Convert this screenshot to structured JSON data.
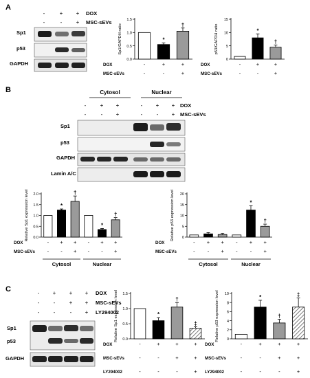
{
  "panels": [
    {
      "letter": "A"
    },
    {
      "letter": "B"
    },
    {
      "letter": "C"
    }
  ],
  "row_labels": {
    "dox": "DOX",
    "msc": "MSC-sEVs",
    "ly": "LY294002"
  },
  "signs": {
    "plus": "+",
    "minus": "-"
  },
  "marks": {
    "star": "*",
    "dagger": "†",
    "ddagger": "‡"
  },
  "blots": {
    "a": [
      "Sp1",
      "p53",
      "GAPDH"
    ],
    "b": [
      "Sp1",
      "p53",
      "GAPDH",
      "Lamin A/C"
    ],
    "c": [
      "Sp1",
      "p53",
      "GAPDH"
    ]
  },
  "fractions": {
    "cytosol": "Cytosol",
    "nuclear": "Nuclear"
  },
  "chart_data": [
    {
      "id": "A1",
      "type": "bar",
      "ylabel": "Sp1/GAPDH ratio",
      "ylim": [
        0,
        1.5
      ],
      "ticks": [
        0,
        0.5,
        1.0,
        1.5
      ],
      "tick_labels": [
        "0.0",
        "0.5",
        "1.0",
        "1.5"
      ],
      "values": [
        1.0,
        0.55,
        1.05
      ],
      "errors": [
        0,
        0.06,
        0.12
      ],
      "marks": [
        "",
        "*",
        "†"
      ]
    },
    {
      "id": "A2",
      "type": "bar",
      "ylabel": "p53/GAPDH ratio",
      "ylim": [
        0,
        15
      ],
      "ticks": [
        0,
        5,
        10,
        15
      ],
      "tick_labels": [
        "0",
        "5",
        "10",
        "15"
      ],
      "values": [
        1.0,
        8.0,
        4.5
      ],
      "errors": [
        0,
        1.5,
        0.8
      ],
      "marks": [
        "",
        "*",
        "†"
      ]
    },
    {
      "id": "B1",
      "type": "bar",
      "ylabel": "Relative Sp1 expression level",
      "ylim": [
        0,
        2.0
      ],
      "ticks": [
        0,
        0.5,
        1.0,
        1.5,
        2.0
      ],
      "tick_labels": [
        "0.0",
        "0.5",
        "1.0",
        "1.5",
        "2.0"
      ],
      "values": [
        1.0,
        1.25,
        1.65,
        1.0,
        0.35,
        0.8
      ],
      "errors": [
        0,
        0.05,
        0.25,
        0,
        0.05,
        0.1
      ],
      "marks": [
        "",
        "*",
        "†",
        "",
        "*",
        "†"
      ]
    },
    {
      "id": "B2",
      "type": "bar",
      "ylabel": "Relative p53 expression level",
      "ylim": [
        0,
        20
      ],
      "ticks": [
        0,
        5,
        10,
        15,
        20
      ],
      "tick_labels": [
        "0",
        "5",
        "10",
        "15",
        "20"
      ],
      "values": [
        1.0,
        1.5,
        1.2,
        1.0,
        12.5,
        5.0
      ],
      "errors": [
        0,
        0.6,
        0.5,
        0,
        2.0,
        1.0
      ],
      "marks": [
        "",
        "",
        "",
        "",
        "*",
        "†"
      ]
    },
    {
      "id": "C1",
      "type": "bar",
      "ylabel": "Relative Sp1 expression level",
      "ylim": [
        0,
        1.5
      ],
      "ticks": [
        0,
        0.5,
        1.0,
        1.5
      ],
      "tick_labels": [
        "0.0",
        "0.5",
        "1.0",
        "1.5"
      ],
      "values": [
        1.0,
        0.6,
        1.05,
        0.35
      ],
      "errors": [
        0,
        0.1,
        0.15,
        0.05
      ],
      "marks": [
        "",
        "*",
        "†",
        "‡"
      ]
    },
    {
      "id": "C2",
      "type": "bar",
      "ylabel": "Relative p53 expression level",
      "ylim": [
        0,
        10
      ],
      "ticks": [
        0,
        2,
        4,
        6,
        8,
        10
      ],
      "tick_labels": [
        "0",
        "2",
        "4",
        "6",
        "8",
        "10"
      ],
      "values": [
        1.0,
        7.0,
        3.5,
        7.0
      ],
      "errors": [
        0,
        1.5,
        0.8,
        2.0
      ],
      "marks": [
        "",
        "*",
        "†",
        "‡"
      ]
    }
  ]
}
